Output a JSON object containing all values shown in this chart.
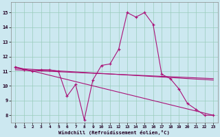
{
  "xlabel": "Windchill (Refroidissement éolien,°C)",
  "bg_color": "#cce8f0",
  "line_color": "#aa1177",
  "grid_color": "#99ccbb",
  "xlim": [
    -0.5,
    23.5
  ],
  "ylim": [
    7.5,
    15.7
  ],
  "xticks": [
    0,
    1,
    2,
    3,
    4,
    5,
    6,
    7,
    8,
    9,
    10,
    11,
    12,
    13,
    14,
    15,
    16,
    17,
    18,
    19,
    20,
    21,
    22,
    23
  ],
  "yticks": [
    8,
    9,
    10,
    11,
    12,
    13,
    14,
    15
  ],
  "line1_x": [
    0,
    1,
    2,
    3,
    4,
    5,
    6,
    7,
    8,
    9,
    10,
    11,
    12,
    13,
    14,
    15,
    16,
    17,
    18,
    19,
    20,
    21,
    22,
    23
  ],
  "line1_y": [
    11.3,
    11.1,
    11.0,
    11.1,
    11.1,
    11.0,
    9.3,
    10.1,
    7.7,
    10.4,
    11.4,
    11.5,
    12.5,
    15.0,
    14.7,
    15.0,
    14.2,
    10.8,
    10.5,
    9.8,
    8.8,
    8.4,
    8.0,
    8.0
  ],
  "line2_x": [
    0,
    23
  ],
  "line2_y": [
    11.3,
    8.0
  ],
  "line3_x": [
    0,
    23
  ],
  "line3_y": [
    11.1,
    10.5
  ],
  "line4_x": [
    0,
    23
  ],
  "line4_y": [
    11.2,
    10.4
  ]
}
